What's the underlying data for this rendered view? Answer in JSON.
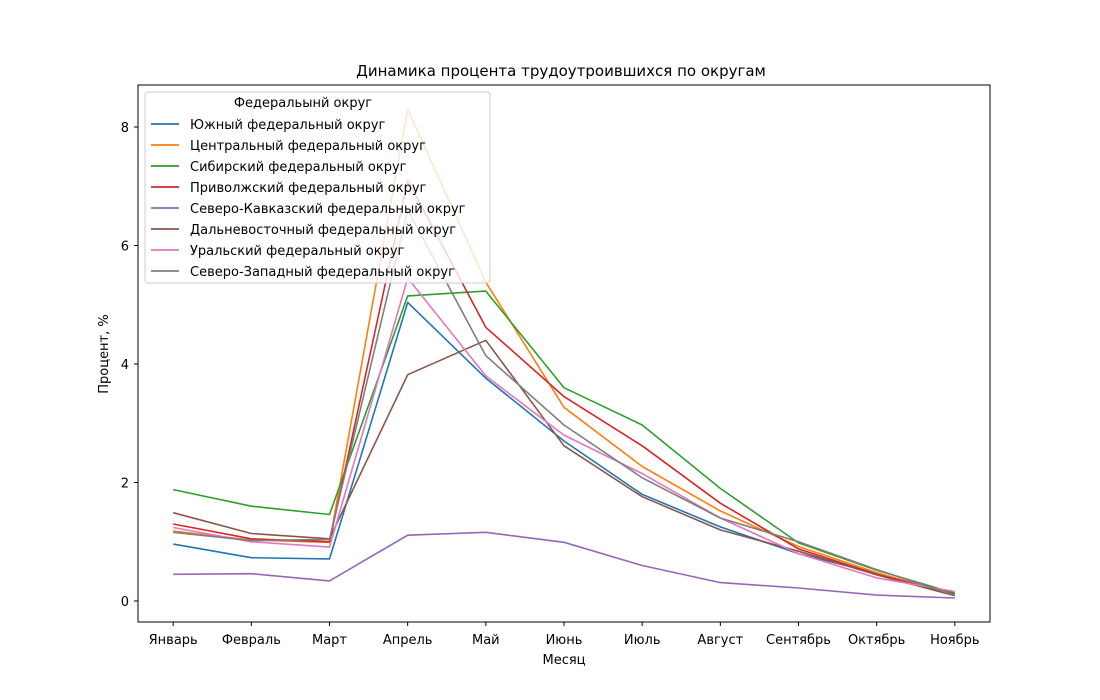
{
  "chart_data": {
    "type": "line",
    "title": "Динамика процента трудоутроившихся по округам",
    "xlabel": "Месяц",
    "ylabel": "Процент, %",
    "categories": [
      "Январь",
      "Февраль",
      "Март",
      "Апрель",
      "Май",
      "Июнь",
      "Июль",
      "Август",
      "Сентябрь",
      "Октябрь",
      "Ноябрь"
    ],
    "ylim": [
      -0.36,
      8.7
    ],
    "yticks": [
      0,
      2,
      4,
      6,
      8
    ],
    "grid": false,
    "legend": {
      "title": "Федеральынй округ",
      "placement": "top-left"
    },
    "series": [
      {
        "name": "Южный федеральный округ",
        "color": "#1f77b4",
        "values": [
          0.96,
          0.73,
          0.71,
          5.04,
          3.76,
          2.7,
          1.8,
          1.25,
          0.8,
          0.47,
          0.12
        ]
      },
      {
        "name": "Центральный федеральный округ",
        "color": "#ff7f0e",
        "values": [
          1.18,
          1.03,
          0.99,
          8.3,
          5.38,
          3.27,
          2.27,
          1.52,
          0.92,
          0.48,
          0.1
        ]
      },
      {
        "name": "Сибирский федеральный округ",
        "color": "#2ca02c",
        "values": [
          1.88,
          1.6,
          1.46,
          5.15,
          5.23,
          3.6,
          2.97,
          1.9,
          0.98,
          0.52,
          0.13
        ]
      },
      {
        "name": "Приволжский федеральный округ",
        "color": "#d62728",
        "values": [
          1.3,
          1.05,
          1.0,
          7.1,
          4.62,
          3.45,
          2.62,
          1.65,
          0.88,
          0.45,
          0.11
        ]
      },
      {
        "name": "Северо-Кавказский федеральный округ",
        "color": "#9467bd",
        "values": [
          0.45,
          0.46,
          0.34,
          1.11,
          1.16,
          0.99,
          0.6,
          0.31,
          0.22,
          0.1,
          0.05
        ]
      },
      {
        "name": "Дальневосточный федеральный округ",
        "color": "#8c564b",
        "values": [
          1.49,
          1.14,
          1.05,
          3.82,
          4.4,
          2.62,
          1.76,
          1.2,
          0.84,
          0.44,
          0.09
        ]
      },
      {
        "name": "Уральский федеральный округ",
        "color": "#e377c2",
        "values": [
          1.24,
          1.0,
          0.91,
          5.45,
          3.8,
          2.8,
          2.15,
          1.4,
          0.8,
          0.39,
          0.16
        ]
      },
      {
        "name": "Северо-Западный федеральный округ",
        "color": "#7f7f7f",
        "values": [
          1.16,
          1.02,
          1.04,
          6.6,
          4.14,
          2.97,
          2.08,
          1.4,
          1.0,
          0.53,
          0.1
        ]
      }
    ]
  }
}
